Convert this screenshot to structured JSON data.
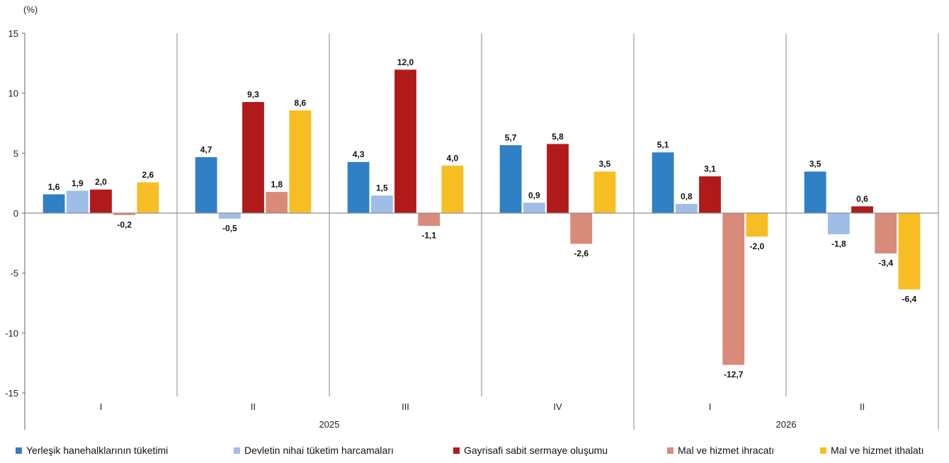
{
  "chart_data": {
    "type": "bar",
    "unit_label": "(%)",
    "ylim": [
      -15,
      15
    ],
    "y_ticks": [
      15,
      10,
      5,
      0,
      -5,
      -10,
      -15
    ],
    "y_tick_labels": [
      "15",
      "10",
      "5",
      "0",
      "-5",
      "-10",
      "-15"
    ],
    "categories": [
      "I",
      "II",
      "III",
      "IV",
      "I",
      "II"
    ],
    "year_groups": [
      {
        "label": "2025",
        "span": [
          0,
          3
        ]
      },
      {
        "label": "2026",
        "span": [
          4,
          5
        ]
      }
    ],
    "series": [
      {
        "name": "Yerleşik hanehalklarının tüketimi",
        "color": "#2f80c5",
        "values": [
          1.6,
          4.7,
          4.3,
          5.7,
          5.1,
          3.5
        ],
        "labels": [
          "1,6",
          "4,7",
          "4,3",
          "5,7",
          "5,1",
          "3,5"
        ]
      },
      {
        "name": "Devletin nihai tüketim harcamaları",
        "color": "#9fbde6",
        "values": [
          1.9,
          -0.5,
          1.5,
          0.9,
          0.8,
          -1.8
        ],
        "labels": [
          "1,9",
          "-0,5",
          "1,5",
          "0,9",
          "0,8",
          "-1,8"
        ]
      },
      {
        "name": "Gayrisafi sabit sermaye oluşumu",
        "color": "#b01a1a",
        "values": [
          2.0,
          9.3,
          12.0,
          5.8,
          3.1,
          0.6
        ],
        "labels": [
          "2,0",
          "9,3",
          "12,0",
          "5,8",
          "3,1",
          "0,6"
        ]
      },
      {
        "name": "Mal ve hizmet ihracatı",
        "color": "#d98b7a",
        "values": [
          -0.2,
          1.8,
          -1.1,
          -2.6,
          -12.7,
          -3.4
        ],
        "labels": [
          "-0,2",
          "1,8",
          "-1,1",
          "-2,6",
          "-12,7",
          "-3,4"
        ]
      },
      {
        "name": "Mal ve hizmet ithalatı",
        "color": "#f7be23",
        "values": [
          2.6,
          8.6,
          4.0,
          3.5,
          -2.0,
          -6.4
        ],
        "labels": [
          "2,6",
          "8,6",
          "4,0",
          "3,5",
          "-2,0",
          "-6,4"
        ]
      }
    ],
    "grid": false,
    "legend_position": "bottom"
  }
}
